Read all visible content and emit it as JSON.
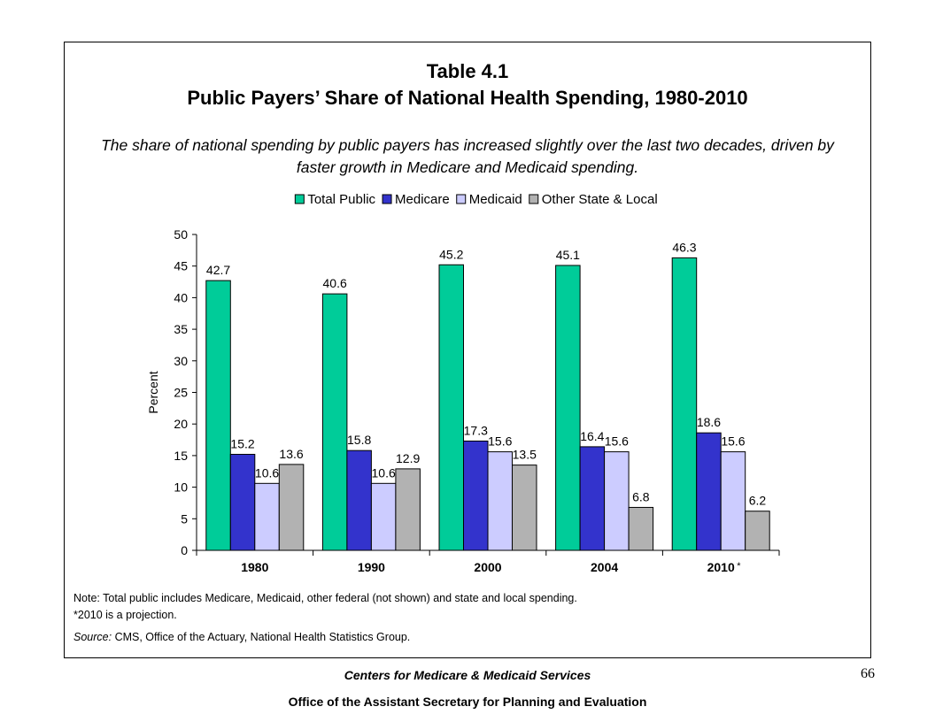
{
  "title_line1": "Table 4.1",
  "title_line2": "Public Payers’ Share of National Health Spending, 1980-2010",
  "subtitle": "The share of national spending by public payers has increased slightly over the last two decades, driven by faster growth in Medicare and Medicaid spending.",
  "chart_data": {
    "type": "bar",
    "categories": [
      "1980",
      "1990",
      "2000",
      "2004",
      "2010"
    ],
    "category_suffix": {
      "2010": "*"
    },
    "series": [
      {
        "name": "Total Public",
        "color": "#00cc99",
        "values": [
          42.7,
          40.6,
          45.2,
          45.1,
          46.3
        ]
      },
      {
        "name": "Medicare",
        "color": "#3333cc",
        "values": [
          15.2,
          15.8,
          17.3,
          16.4,
          18.6
        ]
      },
      {
        "name": "Medicaid",
        "color": "#ccccff",
        "values": [
          10.6,
          10.6,
          15.6,
          15.6,
          15.6
        ]
      },
      {
        "name": "Other State & Local",
        "color": "#b2b2b2",
        "values": [
          13.6,
          12.9,
          13.5,
          6.8,
          6.2
        ]
      }
    ],
    "data_labels": [
      [
        "42.7",
        "40.6",
        "45.2",
        "45.1",
        "46.3"
      ],
      [
        "15.2",
        "15.8",
        "17.3",
        "16.4",
        "18.6"
      ],
      [
        "10.6",
        "10.6",
        "15.6",
        "15.6",
        "15.6"
      ],
      [
        "13.6",
        "12.9",
        "13.5",
        "6.8",
        "6.2"
      ]
    ],
    "ylabel": "Percent",
    "xlabel": "",
    "ylim": [
      0,
      50
    ],
    "yticks": [
      "0",
      "5",
      "10",
      "15",
      "20",
      "25",
      "30",
      "35",
      "40",
      "45",
      "50"
    ],
    "legend_position": "top",
    "grid": false
  },
  "notes": {
    "line1": "Note: Total public includes Medicare, Medicaid, other federal (not shown) and state and local spending.",
    "line2": "*2010 is a projection.",
    "source_label": "Source:",
    "source_text": " CMS, Office of the Actuary, National Health Statistics Group."
  },
  "footer": {
    "line1": "Centers for Medicare & Medicaid Services",
    "line2": "Office of the Assistant Secretary for Planning and Evaluation",
    "page_number": "66"
  }
}
